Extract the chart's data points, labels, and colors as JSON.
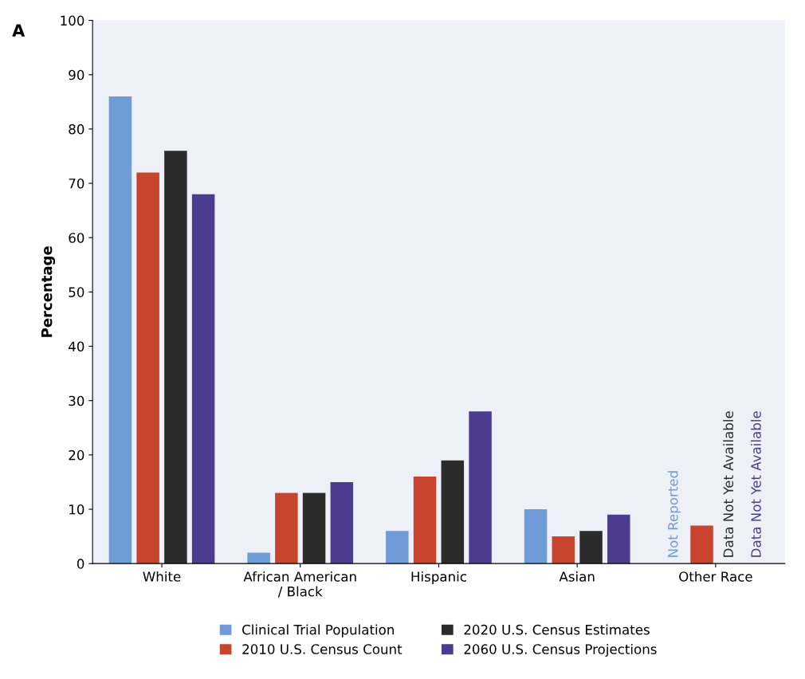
{
  "chart_data": {
    "type": "bar",
    "title": "A",
    "ylabel": "Percentage",
    "categories": [
      "White",
      "African American\n/ Black",
      "Hispanic",
      "Asian",
      "Other Race"
    ],
    "series": [
      {
        "name": "Clinical Trial Population",
        "color": "#6f9bd8",
        "values": [
          86,
          2,
          6,
          10,
          null
        ],
        "value_labels": [
          null,
          null,
          null,
          null,
          "Not Reported"
        ]
      },
      {
        "name": "2010 U.S. Census Count",
        "color": "#c9442c",
        "values": [
          72,
          13,
          16,
          5,
          7
        ],
        "value_labels": [
          null,
          null,
          null,
          null,
          null
        ]
      },
      {
        "name": "2020 U.S. Census Estimates",
        "color": "#2b2b2b",
        "values": [
          76,
          13,
          19,
          6,
          null
        ],
        "value_labels": [
          null,
          null,
          null,
          null,
          "Data Not Yet Available"
        ]
      },
      {
        "name": "2060 U.S. Census Projections",
        "color": "#4b3c8f",
        "values": [
          68,
          15,
          28,
          9,
          null
        ],
        "value_labels": [
          null,
          null,
          null,
          null,
          "Data Not Yet Available"
        ]
      }
    ],
    "ylim": [
      0,
      100
    ],
    "yticks": [
      0,
      10,
      20,
      30,
      40,
      50,
      60,
      70,
      80,
      90,
      100
    ],
    "grid": false,
    "legend": "bottom"
  }
}
